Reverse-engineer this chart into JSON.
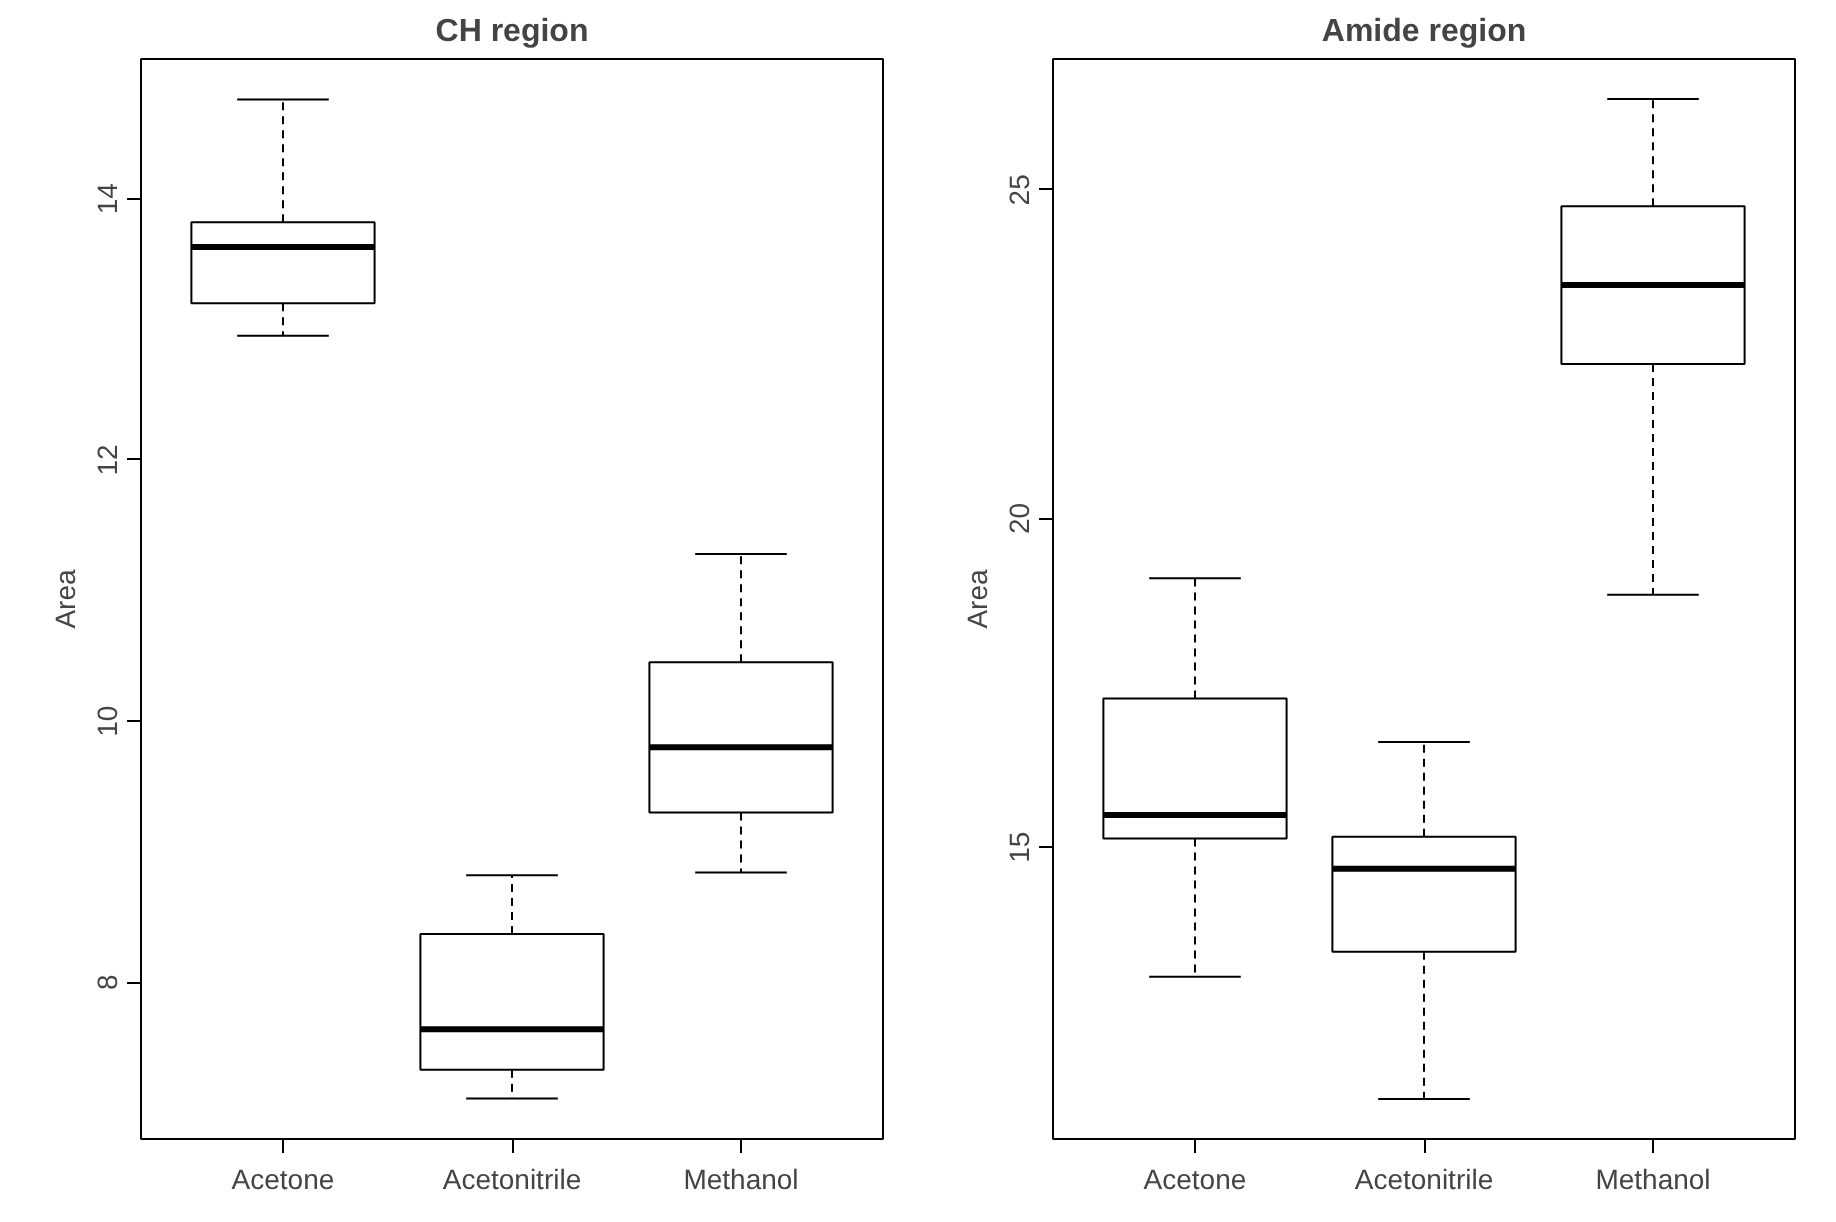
{
  "chart_data": [
    {
      "type": "box",
      "title": "CH region",
      "ylabel": "Area",
      "categories": [
        "Acetone",
        "Acetonitrile",
        "Methanol"
      ],
      "ylim": [
        6.8,
        15.07
      ],
      "yticks": [
        8,
        10,
        12,
        14
      ],
      "grid": false,
      "boxes": [
        {
          "low": 12.95,
          "q1": 13.2,
          "median": 13.63,
          "q3": 13.82,
          "high": 14.76
        },
        {
          "low": 7.11,
          "q1": 7.33,
          "median": 7.64,
          "q3": 8.37,
          "high": 8.82
        },
        {
          "low": 8.84,
          "q1": 9.3,
          "median": 9.8,
          "q3": 10.45,
          "high": 11.28
        }
      ]
    },
    {
      "type": "box",
      "title": "Amide region",
      "ylabel": "Area",
      "categories": [
        "Acetone",
        "Acetonitrile",
        "Methanol"
      ],
      "ylim": [
        10.56,
        26.99
      ],
      "yticks": [
        15,
        20,
        25
      ],
      "grid": false,
      "boxes": [
        {
          "low": 13.03,
          "q1": 15.13,
          "median": 15.49,
          "q3": 17.26,
          "high": 19.09
        },
        {
          "low": 11.17,
          "q1": 13.41,
          "median": 14.67,
          "q3": 15.16,
          "high": 16.6
        },
        {
          "low": 18.84,
          "q1": 22.35,
          "median": 23.55,
          "q3": 24.75,
          "high": 26.38
        }
      ]
    }
  ]
}
